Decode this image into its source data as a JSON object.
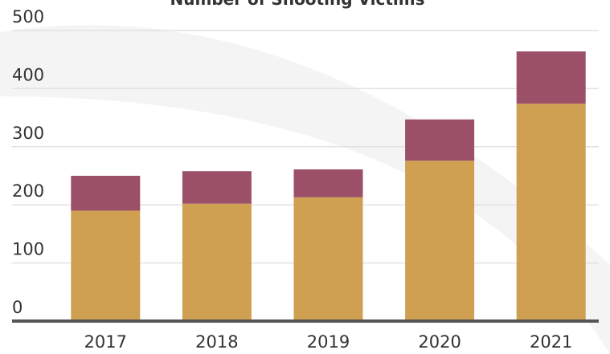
{
  "chart_data": {
    "type": "stacked-bar",
    "title": "Number of Shooting Victims",
    "categories": [
      "2017",
      "2018",
      "2019",
      "2020",
      "2021"
    ],
    "series": [
      {
        "color": "#cfa052",
        "values": [
          190,
          202,
          213,
          276,
          374
        ]
      },
      {
        "color": "#9c5068",
        "values": [
          60,
          56,
          48,
          71,
          90
        ]
      }
    ],
    "ylim": [
      0,
      500
    ],
    "yticks": [
      0,
      100,
      200,
      300,
      400,
      500
    ],
    "grid": true
  }
}
